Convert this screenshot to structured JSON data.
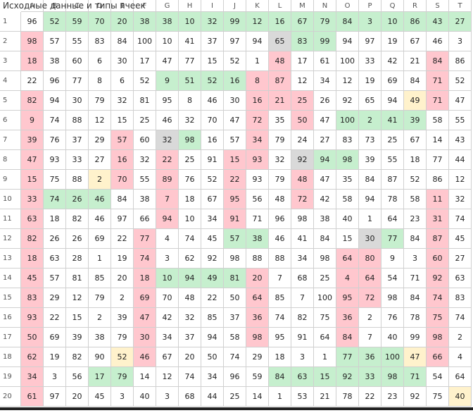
{
  "title": "Исходные данные и типы ячеек",
  "columns": [
    "A",
    "B",
    "C",
    "D",
    "E",
    "F",
    "G",
    "H",
    "I",
    "J",
    "K",
    "L",
    "M",
    "N",
    "O",
    "P",
    "Q",
    "R",
    "S",
    "T"
  ],
  "palette": {
    "w": "#ffffff",
    "g": "#c6efce",
    "r": "#ffc7ce",
    "y": "#fff2cc",
    "s": "#d9d9d9"
  },
  "rows": [
    {
      "label": "1",
      "cells": [
        96,
        52,
        59,
        70,
        20,
        38,
        38,
        10,
        32,
        99,
        12,
        16,
        67,
        79,
        84,
        3,
        10,
        86,
        43,
        27
      ],
      "types": "wggggggggggggggggggg"
    },
    {
      "label": "2",
      "cells": [
        98,
        57,
        55,
        83,
        84,
        100,
        10,
        41,
        37,
        97,
        94,
        65,
        83,
        99,
        94,
        97,
        19,
        67,
        46,
        3
      ],
      "types": "rwwwwwwwwwwsggwwwwww"
    },
    {
      "label": "3",
      "cells": [
        18,
        38,
        60,
        6,
        30,
        17,
        47,
        77,
        15,
        52,
        1,
        48,
        17,
        61,
        100,
        33,
        42,
        21,
        84,
        86
      ],
      "types": "rwwwwwwwwwwrwwwwwwrw"
    },
    {
      "label": "4",
      "cells": [
        22,
        96,
        77,
        8,
        6,
        52,
        9,
        51,
        52,
        16,
        8,
        87,
        12,
        34,
        12,
        19,
        69,
        84,
        71,
        52
      ],
      "types": "wwwwwwggggrrwwwwwwrw"
    },
    {
      "label": "5",
      "cells": [
        82,
        94,
        30,
        79,
        32,
        81,
        95,
        8,
        46,
        30,
        16,
        21,
        25,
        26,
        92,
        65,
        94,
        49,
        71,
        47
      ],
      "types": "rwwwwwwwwwrrrwwwwyrw"
    },
    {
      "label": "6",
      "cells": [
        9,
        74,
        88,
        12,
        15,
        25,
        46,
        32,
        70,
        47,
        72,
        35,
        50,
        47,
        100,
        2,
        41,
        39,
        58,
        55
      ],
      "types": "rwwwwwwwwwrwrwggggww"
    },
    {
      "label": "7",
      "cells": [
        39,
        76,
        37,
        29,
        57,
        60,
        32,
        98,
        16,
        57,
        34,
        79,
        24,
        27,
        83,
        73,
        25,
        67,
        14,
        43
      ],
      "types": "rwwwrwsgwwrwwwwwwwww"
    },
    {
      "label": "8",
      "cells": [
        47,
        93,
        33,
        27,
        16,
        32,
        22,
        25,
        91,
        15,
        93,
        32,
        92,
        94,
        98,
        39,
        55,
        18,
        77,
        44
      ],
      "types": "rwwwrwrwwrrwsggwwwww"
    },
    {
      "label": "9",
      "cells": [
        15,
        75,
        88,
        2,
        70,
        55,
        89,
        76,
        52,
        22,
        93,
        79,
        48,
        47,
        35,
        84,
        87,
        52,
        86,
        12
      ],
      "types": "rwwyrwrwwrwwrwwwwwww"
    },
    {
      "label": "10",
      "cells": [
        33,
        74,
        26,
        46,
        84,
        38,
        7,
        18,
        67,
        95,
        56,
        48,
        72,
        42,
        58,
        94,
        78,
        58,
        11,
        32
      ],
      "types": "rgggwwrwwrwwrwwwwwrw"
    },
    {
      "label": "11",
      "cells": [
        63,
        18,
        82,
        46,
        97,
        66,
        94,
        10,
        34,
        91,
        71,
        96,
        98,
        38,
        40,
        1,
        64,
        23,
        31,
        74
      ],
      "types": "rwwwwwrwwrwwwwwwwwrw"
    },
    {
      "label": "12",
      "cells": [
        82,
        26,
        26,
        69,
        22,
        77,
        4,
        74,
        45,
        57,
        38,
        46,
        41,
        84,
        15,
        30,
        77,
        84,
        87,
        45
      ],
      "types": "rwwwwrwwwggwwwwsgwrw"
    },
    {
      "label": "13",
      "cells": [
        18,
        63,
        28,
        1,
        19,
        74,
        3,
        62,
        92,
        98,
        88,
        88,
        34,
        98,
        64,
        80,
        9,
        3,
        60,
        27
      ],
      "types": "rwwwwrwwwwwwwwrrwwrw"
    },
    {
      "label": "14",
      "cells": [
        45,
        57,
        81,
        85,
        20,
        18,
        10,
        94,
        49,
        81,
        20,
        7,
        68,
        25,
        4,
        64,
        54,
        71,
        92,
        63
      ],
      "types": "rwwwwrggggrwwwrrwwrw"
    },
    {
      "label": "15",
      "cells": [
        83,
        29,
        12,
        79,
        2,
        69,
        70,
        48,
        22,
        50,
        64,
        85,
        7,
        100,
        95,
        72,
        98,
        84,
        74,
        83
      ],
      "types": "rwwwwrwwwwrwwwrrwwrw"
    },
    {
      "label": "16",
      "cells": [
        93,
        22,
        15,
        2,
        39,
        47,
        42,
        32,
        85,
        37,
        36,
        74,
        82,
        75,
        36,
        2,
        76,
        78,
        75,
        74
      ],
      "types": "rwwwwrwwwwrwwwrwwwrw"
    },
    {
      "label": "17",
      "cells": [
        50,
        69,
        39,
        38,
        79,
        30,
        34,
        37,
        94,
        58,
        98,
        95,
        91,
        64,
        84,
        7,
        40,
        99,
        98,
        2
      ],
      "types": "rwwwwrwwwwrwwwrwwwrw"
    },
    {
      "label": "18",
      "cells": [
        62,
        19,
        82,
        90,
        52,
        46,
        67,
        20,
        50,
        74,
        29,
        18,
        3,
        1,
        77,
        36,
        100,
        47,
        66,
        4
      ],
      "types": "rwwwyrwwwwwwwwgggyrw"
    },
    {
      "label": "19",
      "cells": [
        34,
        3,
        56,
        17,
        79,
        14,
        12,
        74,
        34,
        96,
        59,
        84,
        63,
        15,
        92,
        33,
        98,
        71,
        54,
        64
      ],
      "types": "rwwggwwwwwwgggggggww"
    },
    {
      "label": "20",
      "cells": [
        61,
        97,
        20,
        45,
        3,
        40,
        3,
        68,
        44,
        25,
        14,
        1,
        53,
        21,
        78,
        22,
        23,
        92,
        75,
        40
      ],
      "types": "rwwwwwwwwwwwwwwwwwwy"
    }
  ]
}
